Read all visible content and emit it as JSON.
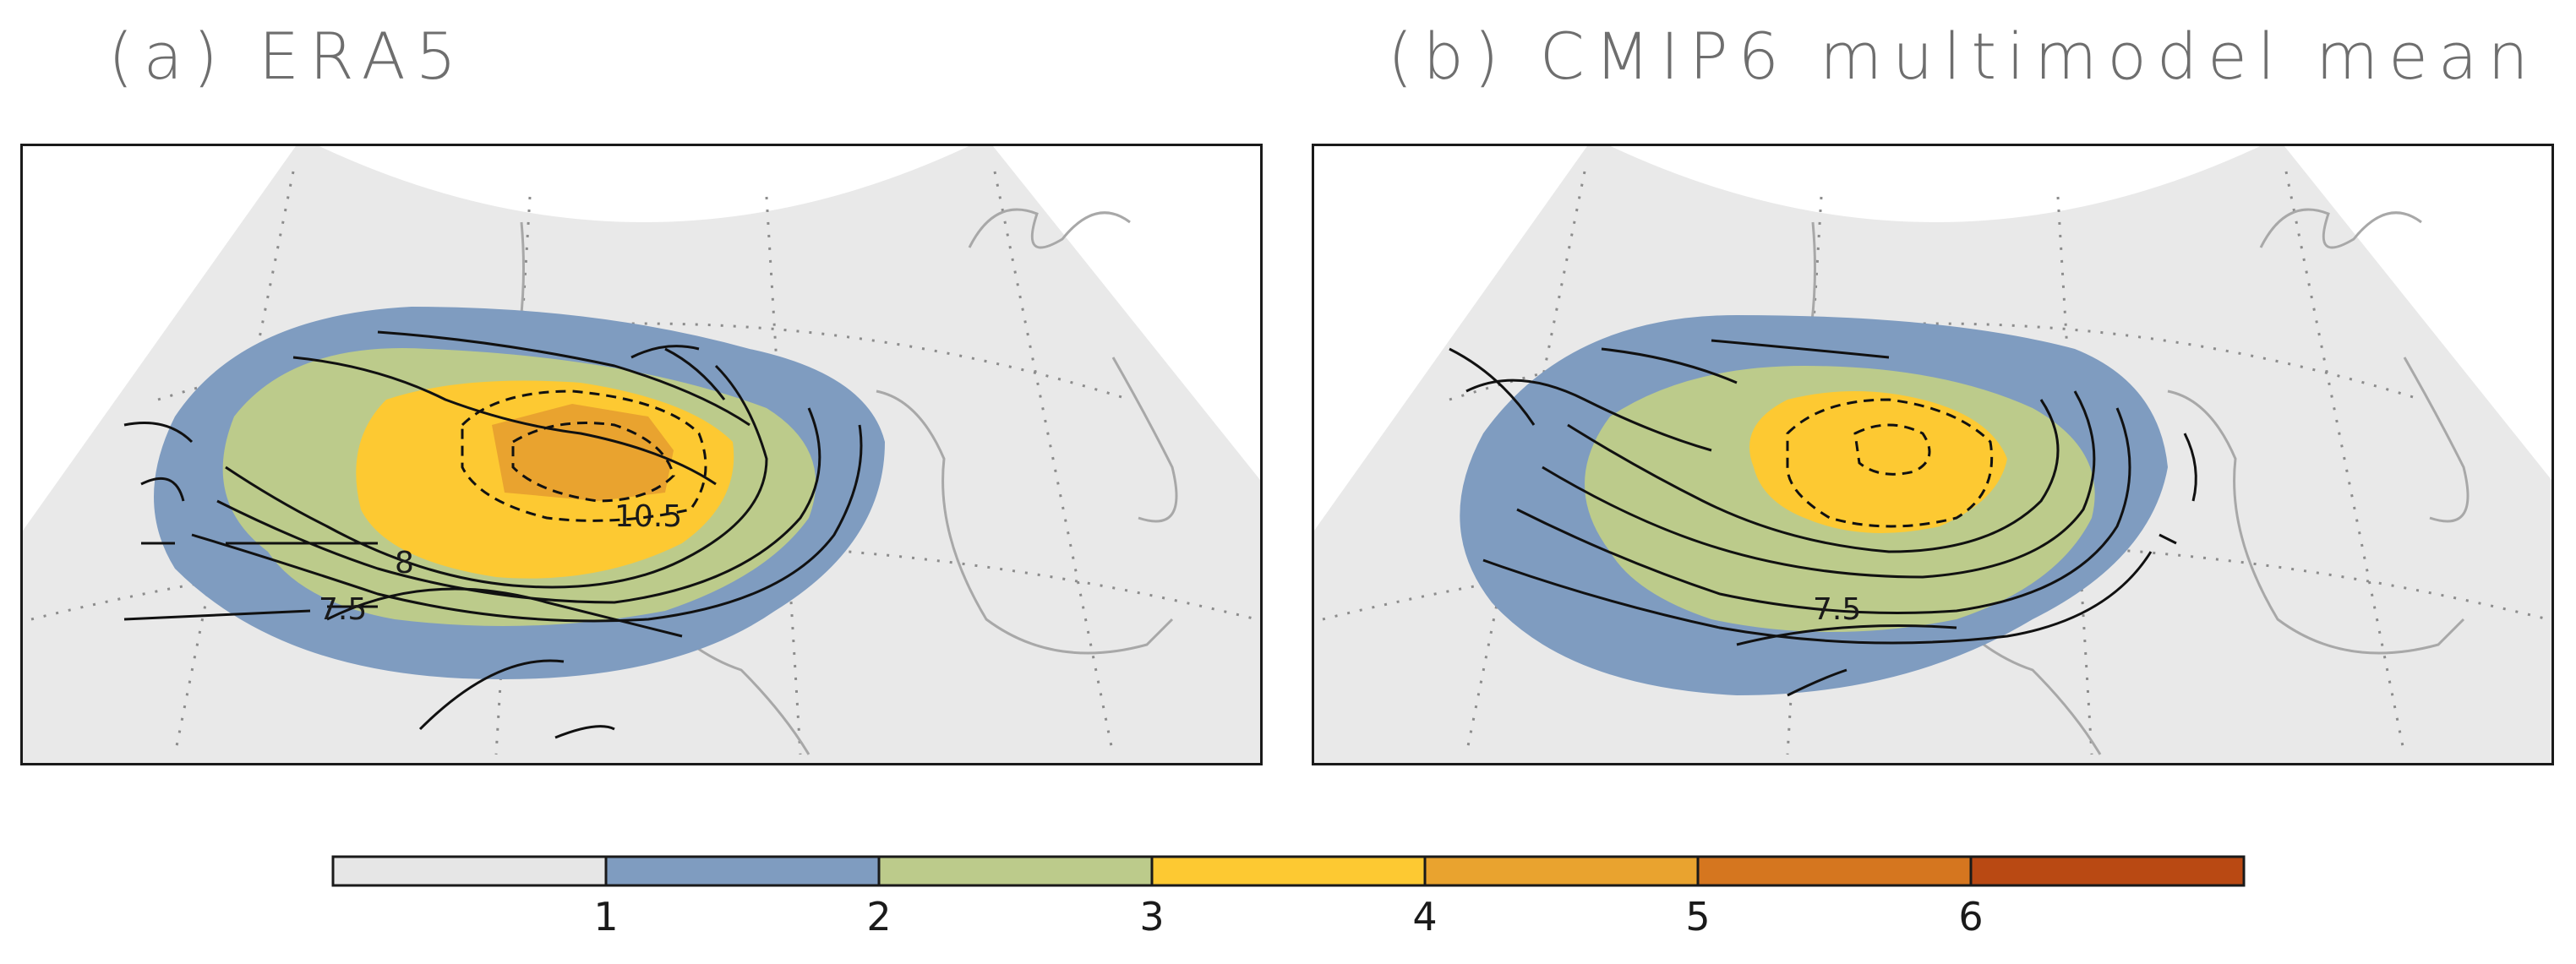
{
  "panels": [
    {
      "title": "(a) ERA5",
      "contour_labels": [
        "10.5",
        "8",
        "7.5"
      ]
    },
    {
      "title": "(b) CMIP6 multimodel mean",
      "contour_labels": [
        "7.5"
      ]
    }
  ],
  "colorbar": {
    "ticks": [
      "1",
      "2",
      "3",
      "4",
      "5",
      "6"
    ],
    "colors": [
      "#e6e6e6",
      "#7f9cc0",
      "#bccb8b",
      "#fdc932",
      "#e9a32f",
      "#d5761f",
      "#b94913"
    ]
  },
  "map_colors": {
    "background": "#e9e9e9",
    "coastline": "#a8a8a8",
    "graticule": "#8c8c8c",
    "contour": "#111111"
  }
}
